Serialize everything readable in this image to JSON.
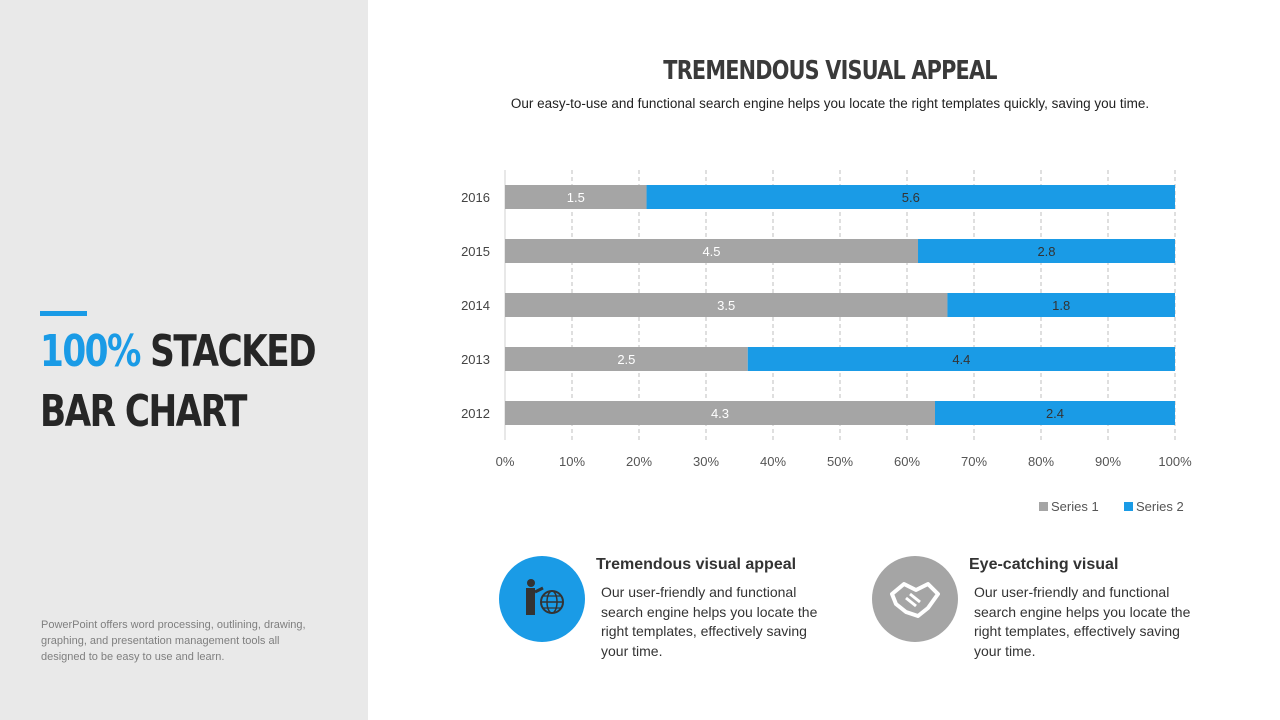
{
  "left": {
    "title_highlight": "100%",
    "title_rest": "STACKED",
    "title_line2": "BAR CHART",
    "note": "PowerPoint offers word processing, outlining, drawing, graphing, and presentation management tools all designed to be easy to use and learn."
  },
  "header": {
    "title": "TREMENDOUS VISUAL APPEAL",
    "subtitle": "Our easy-to-use and functional search engine helps you locate the right templates quickly, saving you time."
  },
  "chart_data": {
    "type": "bar",
    "orientation": "horizontal",
    "stacking": "percent",
    "categories": [
      "2016",
      "2015",
      "2014",
      "2013",
      "2012"
    ],
    "series": [
      {
        "name": "Series 1",
        "values": [
          1.5,
          4.5,
          3.5,
          2.5,
          4.3
        ],
        "color": "#a5a5a5"
      },
      {
        "name": "Series 2",
        "values": [
          5.6,
          2.8,
          1.8,
          4.4,
          2.4
        ],
        "color": "#1a9be6"
      }
    ],
    "x_ticks": [
      "0%",
      "10%",
      "20%",
      "30%",
      "40%",
      "50%",
      "60%",
      "70%",
      "80%",
      "90%",
      "100%"
    ],
    "xlim": [
      0,
      100
    ],
    "grid": "vertical dashed",
    "legend": "bottom-right"
  },
  "features": [
    {
      "icon": "presenter-globe-icon",
      "title": "Tremendous visual appeal",
      "text": "Our user-friendly and functional search engine helps you locate the right templates, effectively saving your time.",
      "color": "#1a9be6"
    },
    {
      "icon": "handshake-icon",
      "title": "Eye-catching visual",
      "text": "Our user-friendly and functional search engine helps you locate the right templates, effectively saving your time.",
      "color": "#a5a5a5"
    }
  ]
}
